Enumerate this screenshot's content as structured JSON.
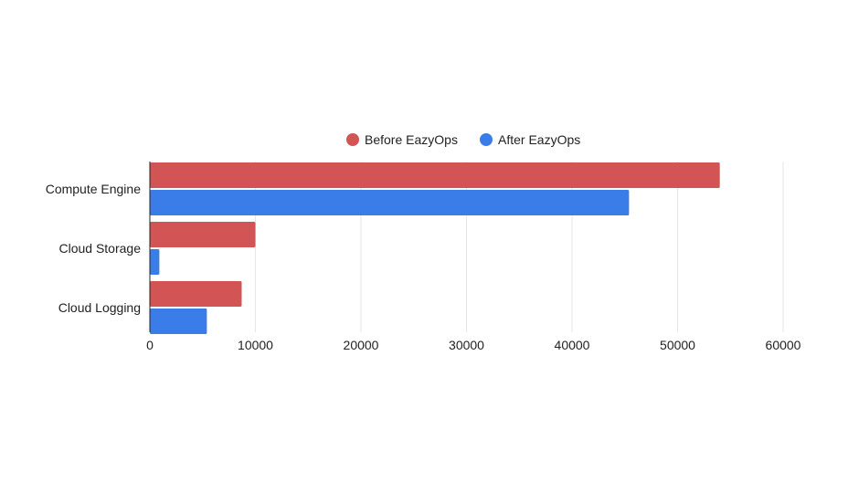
{
  "chart_data": {
    "type": "bar",
    "orientation": "horizontal",
    "categories": [
      "Compute Engine",
      "Cloud Storage",
      "Cloud Logging"
    ],
    "series": [
      {
        "name": "Before EazyOps",
        "color": "#d35454",
        "values": [
          54000,
          10000,
          8700
        ]
      },
      {
        "name": "After EazyOps",
        "color": "#3b7de8",
        "values": [
          45400,
          900,
          5400
        ]
      }
    ],
    "xlim": [
      0,
      60000
    ],
    "xticks": [
      "0",
      "10000",
      "20000",
      "30000",
      "40000",
      "50000",
      "60000"
    ],
    "xtick_values": [
      0,
      10000,
      20000,
      30000,
      40000,
      50000,
      60000
    ],
    "legend_position": "top",
    "grid": "vertical",
    "gridline_color": "#e6e6e6",
    "title": "",
    "xlabel": "",
    "ylabel": ""
  }
}
